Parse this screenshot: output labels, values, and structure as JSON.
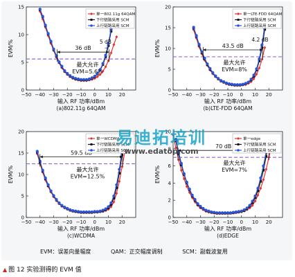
{
  "chart_data": [
    {
      "type": "line",
      "subtitle": "(a)802.11g 64QAM",
      "xlabel": "输入 RF 功率/dBm",
      "ylabel": "EVM/%",
      "xlim": [
        -50,
        30
      ],
      "ylim": [
        0,
        15
      ],
      "xticks": [
        -50,
        -40,
        -30,
        -20,
        -10,
        0,
        10,
        20
      ],
      "yticks": [
        0,
        5,
        10,
        15
      ],
      "legend_position": "top-right",
      "legend": [
        "单一802.11g 64QAM",
        "下行链路采用 SCM",
        "上行链路采用 SCM"
      ],
      "threshold": {
        "value": 5.6,
        "label": "最大允许",
        "label2": "EVM=5.6%"
      },
      "range_label": "36 dB",
      "gap_label": "5 dB",
      "series": [
        {
          "name": "单一802.11g 64QAM",
          "color": "#e8312f",
          "marker": "diamond",
          "x": [
            -40,
            -38,
            -36,
            -34,
            -32,
            -30,
            -28,
            -26,
            -24,
            -22,
            -20,
            -18,
            -16,
            -14,
            -12,
            -10,
            -8,
            -6,
            -4,
            -2,
            0,
            2,
            4,
            6,
            8,
            10,
            12,
            14,
            16
          ],
          "y": [
            14.2,
            12.8,
            11.3,
            9.8,
            8.4,
            7.1,
            5.9,
            4.9,
            4.0,
            3.3,
            2.8,
            2.4,
            2.1,
            1.9,
            1.8,
            1.7,
            1.7,
            1.7,
            1.8,
            1.9,
            2.1,
            2.4,
            2.8,
            3.4,
            4.2,
            5.3,
            6.7,
            8.2,
            9.6
          ]
        },
        {
          "name": "下行链路采用 SCM",
          "color": "#111111",
          "marker": "square",
          "x": [
            -40,
            -38,
            -36,
            -34,
            -32,
            -30,
            -28,
            -26,
            -24,
            -22,
            -20,
            -18,
            -16,
            -14,
            -12,
            -10,
            -8,
            -6,
            -4,
            -2,
            0,
            2,
            4,
            6,
            8,
            10,
            12,
            14
          ],
          "y": [
            14.5,
            13.2,
            11.6,
            10.1,
            8.7,
            7.3,
            6.1,
            5.0,
            4.2,
            3.4,
            2.9,
            2.5,
            2.2,
            2.0,
            1.9,
            1.8,
            1.8,
            1.8,
            1.9,
            2.1,
            2.4,
            2.9,
            3.6,
            4.6,
            6.0,
            8.0,
            10.6,
            13.5
          ]
        },
        {
          "name": "上行链路采用 SCM",
          "color": "#2b55d6",
          "marker": "circle",
          "x": [
            -40,
            -38,
            -36,
            -34,
            -32,
            -30,
            -28,
            -26,
            -24,
            -22,
            -20,
            -18,
            -16,
            -14,
            -12,
            -10,
            -8,
            -6,
            -4,
            -2,
            0,
            2,
            4,
            6,
            8,
            10,
            12,
            14
          ],
          "y": [
            14.6,
            13.3,
            11.7,
            10.2,
            8.8,
            7.4,
            6.2,
            5.1,
            4.3,
            3.5,
            3.0,
            2.6,
            2.3,
            2.1,
            2.0,
            1.9,
            1.9,
            1.9,
            2.0,
            2.2,
            2.5,
            3.0,
            3.7,
            4.8,
            6.3,
            8.4,
            11.0,
            13.9
          ]
        }
      ]
    },
    {
      "type": "line",
      "subtitle": "(b)LTE-FDD 64QAM",
      "xlabel": "输入 RF 功率/dBm",
      "ylabel": "EVM/%",
      "xlim": [
        -50,
        30
      ],
      "ylim": [
        0,
        20
      ],
      "xticks": [
        -50,
        -40,
        -30,
        -20,
        -10,
        0,
        10,
        20
      ],
      "yticks": [
        0,
        5,
        10,
        15,
        20
      ],
      "legend_position": "top-right",
      "legend": [
        "单一LTE-FDD 64QAM",
        "下行链路采用 SCM",
        "上行链路采用 SCM"
      ],
      "threshold": {
        "value": 8,
        "label": "最大允许",
        "label2": "EVM=8%"
      },
      "range_label": "43.5 dB",
      "gap_label": "4.2 dB",
      "series": [
        {
          "name": "单一LTE-FDD 64QAM",
          "color": "#e8312f",
          "marker": "diamond",
          "x": [
            -35,
            -33,
            -31,
            -29,
            -27,
            -25,
            -23,
            -21,
            -19,
            -17,
            -15,
            -13,
            -11,
            -9,
            -7,
            -5,
            -3,
            -1,
            1,
            3,
            5,
            7,
            9,
            11,
            13,
            15,
            17
          ],
          "y": [
            14.5,
            12.5,
            10.4,
            8.7,
            7.2,
            5.9,
            4.8,
            3.9,
            3.2,
            2.6,
            2.1,
            1.8,
            1.5,
            1.3,
            1.2,
            1.1,
            1.1,
            1.1,
            1.2,
            1.3,
            1.6,
            2.0,
            2.7,
            3.8,
            5.3,
            7.4,
            10.2
          ]
        },
        {
          "name": "下行链路采用 SCM",
          "color": "#111111",
          "marker": "square",
          "x": [
            -35,
            -33,
            -31,
            -29,
            -27,
            -25,
            -23,
            -21,
            -19,
            -17,
            -15,
            -13,
            -11,
            -9,
            -7,
            -5,
            -3,
            -1,
            1,
            3,
            5,
            7,
            9,
            11,
            13,
            15,
            17
          ],
          "y": [
            14.9,
            12.9,
            10.8,
            9.0,
            7.5,
            6.1,
            5.0,
            4.1,
            3.3,
            2.7,
            2.2,
            1.9,
            1.6,
            1.4,
            1.3,
            1.2,
            1.2,
            1.2,
            1.3,
            1.5,
            1.8,
            2.4,
            3.3,
            4.8,
            7.0,
            10.2,
            14.6
          ]
        },
        {
          "name": "上行链路采用 SCM",
          "color": "#2b55d6",
          "marker": "circle",
          "x": [
            -35,
            -33,
            -31,
            -29,
            -27,
            -25,
            -23,
            -21,
            -19,
            -17,
            -15,
            -13,
            -11,
            -9,
            -7,
            -5,
            -3,
            -1,
            1,
            3,
            5,
            7,
            9,
            11,
            13,
            15,
            17
          ],
          "y": [
            15.1,
            13.1,
            11.0,
            9.2,
            7.7,
            6.3,
            5.2,
            4.2,
            3.4,
            2.8,
            2.3,
            2.0,
            1.7,
            1.5,
            1.4,
            1.3,
            1.3,
            1.3,
            1.4,
            1.6,
            1.9,
            2.6,
            3.6,
            5.1,
            7.5,
            10.9,
            15.6
          ]
        }
      ]
    },
    {
      "type": "line",
      "subtitle": "(c)WCDMA",
      "xlabel": "输入 RF 功率/dBm",
      "ylabel": "EVM/%",
      "xlim": [
        -50,
        30
      ],
      "ylim": [
        0,
        20
      ],
      "xticks": [
        -50,
        -40,
        -30,
        -20,
        -10,
        0,
        10,
        20
      ],
      "yticks": [
        0,
        5,
        10,
        15,
        20
      ],
      "legend_position": "top-right",
      "legend": [
        "单一WCDMA",
        "下行链路采用 SCM",
        "上行链路采用 SCM"
      ],
      "threshold": {
        "value": 12.5,
        "label": "最大允许",
        "label2": "EVM=12.5%"
      },
      "range_label": "59.5 dB",
      "gap_label": "",
      "series": [
        {
          "name": "单一WCDMA",
          "color": "#e8312f",
          "marker": "diamond",
          "x": [
            -42,
            -40,
            -38,
            -36,
            -34,
            -32,
            -30,
            -28,
            -26,
            -24,
            -22,
            -20,
            -18,
            -16,
            -14,
            -12,
            -10,
            -8,
            -6,
            -4,
            -2,
            0,
            2,
            4,
            6,
            8,
            10,
            12,
            14,
            16,
            18,
            20,
            22
          ],
          "y": [
            14.8,
            12.5,
            10.5,
            8.7,
            7.2,
            5.9,
            4.8,
            3.9,
            3.2,
            2.6,
            2.2,
            1.9,
            1.6,
            1.4,
            1.3,
            1.2,
            1.1,
            1.1,
            1.1,
            1.1,
            1.1,
            1.2,
            1.2,
            1.3,
            1.4,
            1.6,
            1.9,
            2.5,
            3.6,
            5.6,
            8.4,
            11.8,
            15.2
          ]
        },
        {
          "name": "下行链路采用 SCM",
          "color": "#111111",
          "marker": "square",
          "x": [
            -42,
            -40,
            -38,
            -36,
            -34,
            -32,
            -30,
            -28,
            -26,
            -24,
            -22,
            -20,
            -18,
            -16,
            -14,
            -12,
            -10,
            -8,
            -6,
            -4,
            -2,
            0,
            2,
            4,
            6,
            8,
            10,
            12,
            14,
            16,
            18,
            20
          ],
          "y": [
            15.2,
            12.9,
            10.8,
            9.0,
            7.4,
            6.1,
            5.0,
            4.1,
            3.3,
            2.7,
            2.3,
            2.0,
            1.7,
            1.5,
            1.4,
            1.3,
            1.2,
            1.2,
            1.2,
            1.2,
            1.2,
            1.3,
            1.3,
            1.4,
            1.5,
            1.8,
            2.2,
            3.0,
            4.5,
            6.9,
            10.3,
            14.6
          ]
        },
        {
          "name": "上行链路采用 SCM",
          "color": "#2b55d6",
          "marker": "circle",
          "x": [
            -42,
            -40,
            -38,
            -36,
            -34,
            -32,
            -30,
            -28,
            -26,
            -24,
            -22,
            -20,
            -18,
            -16,
            -14,
            -12,
            -10,
            -8,
            -6,
            -4,
            -2,
            0,
            2,
            4,
            6,
            8,
            10,
            12,
            14,
            16,
            18,
            20
          ],
          "y": [
            15.4,
            13.1,
            11.0,
            9.2,
            7.6,
            6.2,
            5.1,
            4.2,
            3.4,
            2.8,
            2.4,
            2.1,
            1.8,
            1.6,
            1.5,
            1.4,
            1.3,
            1.3,
            1.3,
            1.3,
            1.3,
            1.4,
            1.4,
            1.5,
            1.7,
            2.0,
            2.5,
            3.4,
            5.0,
            7.6,
            11.2,
            15.8
          ]
        }
      ]
    },
    {
      "type": "line",
      "subtitle": "(d)EDGE",
      "xlabel": "输入 RF 功率/dBm",
      "ylabel": "EVM/%",
      "xlim": [
        -50,
        30
      ],
      "ylim": [
        0,
        10
      ],
      "xticks": [
        -50,
        -40,
        -30,
        -20,
        -10,
        0,
        10,
        20
      ],
      "yticks": [
        0,
        2,
        4,
        6,
        8,
        10
      ],
      "legend_position": "top-right",
      "legend": [
        "单一edge",
        "下行链路采用 SCM",
        "上行链路采用 SCM"
      ],
      "threshold": {
        "value": 7,
        "label": "最大允许",
        "label2": "EVM=7%"
      },
      "range_label": "70 dB",
      "gap_label": "4.5 dB",
      "series": [
        {
          "name": "单一edge",
          "color": "#e8312f",
          "marker": "diamond",
          "x": [
            -50,
            -48,
            -46,
            -44,
            -42,
            -40,
            -38,
            -36,
            -34,
            -32,
            -30,
            -28,
            -26,
            -24,
            -22,
            -20,
            -18,
            -16,
            -14,
            -12,
            -10,
            -8,
            -6,
            -4,
            -2,
            0,
            2,
            4,
            6,
            8,
            10,
            12,
            14,
            16,
            18,
            20,
            22,
            24
          ],
          "y": [
            9.6,
            8.1,
            6.7,
            5.5,
            4.5,
            3.6,
            2.9,
            2.3,
            1.8,
            1.4,
            1.1,
            0.9,
            0.7,
            0.6,
            0.55,
            0.5,
            0.45,
            0.45,
            0.45,
            0.45,
            0.45,
            0.5,
            0.5,
            0.55,
            0.6,
            0.65,
            0.75,
            0.9,
            1.1,
            1.4,
            1.9,
            2.6,
            3.4,
            4.4,
            5.6,
            7.0,
            8.4,
            9.6
          ]
        },
        {
          "name": "下行链路采用 SCM",
          "color": "#111111",
          "marker": "square",
          "x": [
            -48,
            -46,
            -44,
            -42,
            -40,
            -38,
            -36,
            -34,
            -32,
            -30,
            -28,
            -26,
            -24,
            -22,
            -20,
            -18,
            -16,
            -14,
            -12,
            -10,
            -8,
            -6,
            -4,
            -2,
            0,
            2,
            4,
            6,
            8,
            10,
            12,
            14,
            16,
            18,
            20
          ],
          "y": [
            8.9,
            7.4,
            6.1,
            5.0,
            4.0,
            3.2,
            2.5,
            2.0,
            1.5,
            1.2,
            1.0,
            0.8,
            0.7,
            0.6,
            0.55,
            0.5,
            0.5,
            0.5,
            0.5,
            0.5,
            0.5,
            0.55,
            0.6,
            0.65,
            0.7,
            0.8,
            1.0,
            1.3,
            1.7,
            2.3,
            3.1,
            4.2,
            5.5,
            7.1,
            8.8
          ]
        },
        {
          "name": "上行链路采用 SCM",
          "color": "#2b55d6",
          "marker": "circle",
          "x": [
            -48,
            -46,
            -44,
            -42,
            -40,
            -38,
            -36,
            -34,
            -32,
            -30,
            -28,
            -26,
            -24,
            -22,
            -20,
            -18,
            -16,
            -14,
            -12,
            -10,
            -8,
            -6,
            -4,
            -2,
            0,
            2,
            4,
            6,
            8,
            10,
            12,
            14,
            16,
            18,
            20
          ],
          "y": [
            9.1,
            7.6,
            6.3,
            5.1,
            4.1,
            3.3,
            2.6,
            2.1,
            1.6,
            1.3,
            1.05,
            0.85,
            0.75,
            0.65,
            0.6,
            0.55,
            0.55,
            0.55,
            0.55,
            0.55,
            0.55,
            0.6,
            0.65,
            0.7,
            0.75,
            0.9,
            1.1,
            1.4,
            1.9,
            2.5,
            3.4,
            4.6,
            6.0,
            7.6,
            9.3
          ]
        }
      ]
    }
  ],
  "footer_legend": [
    "EVM：误差向量幅度",
    "QAM：正交幅度调制",
    "SCM：副载波复用"
  ],
  "caption": {
    "marker": "▲",
    "text": "图 12  实验测得的 EVM 值"
  },
  "watermark": {
    "brand": "易迪拓培训",
    "url": "www.edatop.com"
  }
}
